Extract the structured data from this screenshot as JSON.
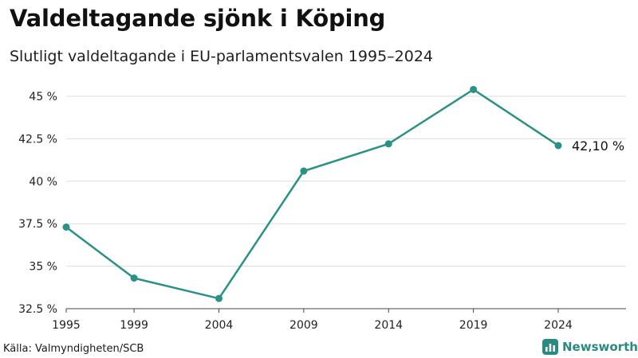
{
  "header": {
    "title": "Valdeltagande sjönk i Köping",
    "subtitle": "Slutligt valdeltagande i EU-parlamentsvalen 1995–2024"
  },
  "footer": {
    "source": "Källa: Valmyndigheten/SCB",
    "brand": "Newsworthy"
  },
  "colors": {
    "line": "#2a9187",
    "grid": "#dddddd",
    "brand": "#2a8a7f"
  },
  "chart_data": {
    "type": "line",
    "x": [
      1995,
      1999,
      2004,
      2009,
      2014,
      2019,
      2024
    ],
    "x_tick_labels": [
      "1995",
      "1999",
      "2004",
      "2009",
      "2014",
      "2019",
      "2024"
    ],
    "series": [
      {
        "name": "Valdeltagande",
        "values": [
          37.3,
          34.3,
          33.1,
          40.6,
          42.2,
          45.4,
          42.1
        ]
      }
    ],
    "ylim": [
      32.5,
      45
    ],
    "y_ticks": [
      32.5,
      35,
      37.5,
      40,
      42.5,
      45
    ],
    "y_tick_labels": [
      "32.5 %",
      "35 %",
      "37.5 %",
      "40 %",
      "42.5 %",
      "45 %"
    ],
    "end_label": "42,10 %",
    "grid": true,
    "xlabel": "",
    "ylabel": ""
  }
}
